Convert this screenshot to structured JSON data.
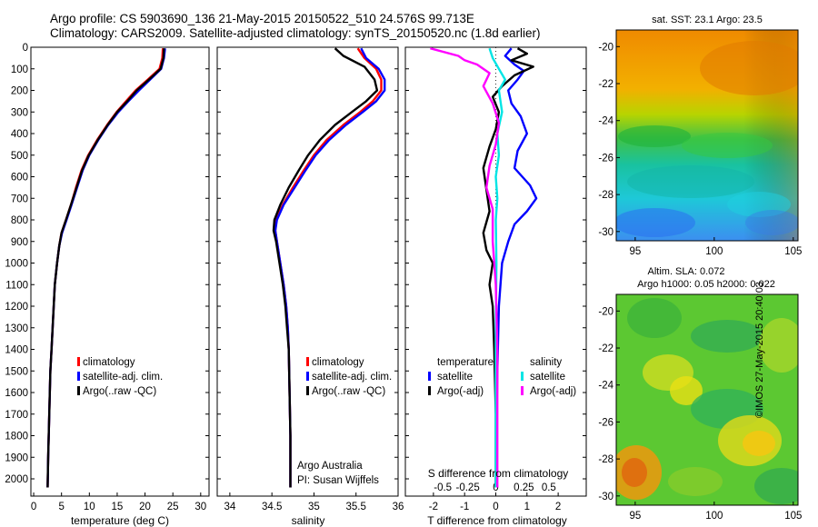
{
  "header": {
    "line1": "Argo profile: CS 5903690_136 21-May-2015 20150522_510 24.576S 99.713E",
    "line2": "Climatology: CARS2009. Satellite-adjusted climatology: synTS_20150520.nc (1.8d earlier)"
  },
  "stamp": "©IMOS 27-May-2015 20:40:03",
  "chart_data": [
    {
      "type": "line",
      "panel": "temperature",
      "xlabel": "temperature (deg C)",
      "ylabel": "",
      "xlim": [
        -0.5,
        31.5
      ],
      "ylim": [
        2080,
        0
      ],
      "xticks": [
        0,
        5,
        10,
        15,
        20,
        25,
        30
      ],
      "yticks": [
        0,
        100,
        200,
        300,
        400,
        500,
        600,
        700,
        800,
        900,
        1000,
        1100,
        1200,
        1300,
        1400,
        1500,
        1600,
        1700,
        1800,
        1900,
        2000
      ],
      "legend": [
        "climatology",
        "satellite-adj. clim.",
        "Argo(..raw -QC)"
      ],
      "series": [
        {
          "name": "climatology",
          "color": "#ff0000",
          "points": [
            [
              23.2,
              5
            ],
            [
              23.1,
              50
            ],
            [
              22.6,
              100
            ],
            [
              20.5,
              150
            ],
            [
              18.3,
              200
            ],
            [
              16.6,
              250
            ],
            [
              14.9,
              300
            ],
            [
              13.2,
              360
            ],
            [
              11.4,
              430
            ],
            [
              9.8,
              500
            ],
            [
              8.6,
              570
            ],
            [
              7.6,
              650
            ],
            [
              6.7,
              730
            ],
            [
              5.8,
              800
            ],
            [
              5.0,
              860
            ],
            [
              4.6,
              920
            ],
            [
              4.2,
              1000
            ],
            [
              3.8,
              1100
            ],
            [
              3.6,
              1200
            ],
            [
              3.4,
              1300
            ],
            [
              3.2,
              1400
            ],
            [
              3.0,
              1500
            ],
            [
              2.9,
              1600
            ],
            [
              2.8,
              1700
            ],
            [
              2.7,
              1800
            ],
            [
              2.6,
              1900
            ],
            [
              2.5,
              2040
            ]
          ]
        },
        {
          "name": "satellite-adj. clim.",
          "color": "#0000ff",
          "points": [
            [
              23.6,
              5
            ],
            [
              23.4,
              50
            ],
            [
              22.9,
              100
            ],
            [
              20.9,
              150
            ],
            [
              18.9,
              200
            ],
            [
              17.0,
              250
            ],
            [
              15.2,
              300
            ],
            [
              13.4,
              360
            ],
            [
              11.6,
              430
            ],
            [
              10.0,
              500
            ],
            [
              8.8,
              570
            ],
            [
              7.8,
              650
            ],
            [
              6.8,
              730
            ],
            [
              5.9,
              800
            ],
            [
              5.1,
              860
            ],
            [
              4.6,
              920
            ],
            [
              4.2,
              1000
            ],
            [
              3.8,
              1100
            ],
            [
              3.6,
              1200
            ],
            [
              3.4,
              1300
            ],
            [
              3.2,
              1400
            ],
            [
              3.0,
              1500
            ],
            [
              2.9,
              1600
            ],
            [
              2.8,
              1700
            ],
            [
              2.7,
              1800
            ],
            [
              2.6,
              1900
            ],
            [
              2.5,
              2040
            ]
          ]
        },
        {
          "name": "Argo(..raw -QC)",
          "color": "#000000",
          "points": [
            [
              23.4,
              5
            ],
            [
              23.3,
              50
            ],
            [
              22.8,
              100
            ],
            [
              20.7,
              150
            ],
            [
              18.5,
              200
            ],
            [
              16.8,
              250
            ],
            [
              15.0,
              300
            ],
            [
              13.3,
              360
            ],
            [
              11.5,
              430
            ],
            [
              9.9,
              500
            ],
            [
              8.7,
              570
            ],
            [
              7.7,
              650
            ],
            [
              6.7,
              730
            ],
            [
              5.8,
              800
            ],
            [
              5.0,
              860
            ],
            [
              4.6,
              920
            ],
            [
              4.2,
              1000
            ],
            [
              3.8,
              1100
            ],
            [
              3.6,
              1200
            ],
            [
              3.4,
              1300
            ],
            [
              3.2,
              1400
            ],
            [
              3.0,
              1500
            ],
            [
              2.9,
              1600
            ],
            [
              2.8,
              1700
            ],
            [
              2.7,
              1800
            ],
            [
              2.6,
              1900
            ],
            [
              2.5,
              2040
            ]
          ]
        }
      ]
    },
    {
      "type": "line",
      "panel": "salinity",
      "xlabel": "salinity",
      "ylabel": "",
      "xlim": [
        33.85,
        36.0
      ],
      "ylim": [
        2080,
        0
      ],
      "xticks": [
        34,
        34.5,
        35,
        35.5,
        36
      ],
      "legend": [
        "climatology",
        "satellite-adj. clim.",
        "Argo(..raw -QC)"
      ],
      "annotation": [
        "Argo Australia",
        "PI: Susan Wijffels"
      ],
      "series": [
        {
          "name": "climatology",
          "color": "#ff0000",
          "points": [
            [
              35.52,
              5
            ],
            [
              35.6,
              50
            ],
            [
              35.74,
              100
            ],
            [
              35.8,
              150
            ],
            [
              35.8,
              200
            ],
            [
              35.7,
              250
            ],
            [
              35.55,
              300
            ],
            [
              35.35,
              360
            ],
            [
              35.15,
              430
            ],
            [
              35.0,
              500
            ],
            [
              34.88,
              570
            ],
            [
              34.75,
              650
            ],
            [
              34.63,
              730
            ],
            [
              34.55,
              800
            ],
            [
              34.54,
              850
            ],
            [
              34.56,
              900
            ],
            [
              34.6,
              1000
            ],
            [
              34.64,
              1100
            ],
            [
              34.67,
              1200
            ],
            [
              34.69,
              1300
            ],
            [
              34.7,
              1400
            ],
            [
              34.71,
              1600
            ],
            [
              34.72,
              1800
            ],
            [
              34.72,
              2040
            ]
          ]
        },
        {
          "name": "satellite-adj. clim.",
          "color": "#0000ff",
          "points": [
            [
              35.56,
              5
            ],
            [
              35.62,
              50
            ],
            [
              35.77,
              100
            ],
            [
              35.84,
              150
            ],
            [
              35.84,
              200
            ],
            [
              35.74,
              250
            ],
            [
              35.58,
              300
            ],
            [
              35.38,
              360
            ],
            [
              35.18,
              430
            ],
            [
              35.02,
              500
            ],
            [
              34.9,
              570
            ],
            [
              34.77,
              650
            ],
            [
              34.64,
              730
            ],
            [
              34.56,
              800
            ],
            [
              34.54,
              850
            ],
            [
              34.56,
              900
            ],
            [
              34.6,
              1000
            ],
            [
              34.64,
              1100
            ],
            [
              34.67,
              1200
            ],
            [
              34.69,
              1300
            ],
            [
              34.7,
              1400
            ],
            [
              34.71,
              1600
            ],
            [
              34.72,
              1800
            ],
            [
              34.72,
              2040
            ]
          ]
        },
        {
          "name": "Argo(..raw -QC)",
          "color": "#000000",
          "points": [
            [
              35.25,
              5
            ],
            [
              35.35,
              40
            ],
            [
              35.6,
              90
            ],
            [
              35.72,
              150
            ],
            [
              35.75,
              200
            ],
            [
              35.62,
              250
            ],
            [
              35.45,
              300
            ],
            [
              35.25,
              360
            ],
            [
              35.07,
              430
            ],
            [
              34.93,
              500
            ],
            [
              34.82,
              570
            ],
            [
              34.7,
              650
            ],
            [
              34.6,
              730
            ],
            [
              34.53,
              800
            ],
            [
              34.52,
              850
            ],
            [
              34.55,
              900
            ],
            [
              34.59,
              1000
            ],
            [
              34.63,
              1100
            ],
            [
              34.66,
              1200
            ],
            [
              34.68,
              1300
            ],
            [
              34.7,
              1400
            ],
            [
              34.71,
              1600
            ],
            [
              34.72,
              1800
            ],
            [
              34.72,
              2040
            ]
          ]
        }
      ]
    },
    {
      "type": "line",
      "panel": "difference",
      "xlabel": "T difference from climatology",
      "xlabel_top": "S difference from climatology",
      "xlim": [
        -2.9,
        2.9
      ],
      "ylim": [
        2080,
        0
      ],
      "xticks_T": [
        -2,
        -1,
        0,
        1,
        2
      ],
      "xticks_S": [
        "-0.5",
        "-0.25",
        "0",
        "0.25",
        "0.5"
      ],
      "legend_groups": [
        {
          "title": "temperature",
          "items": [
            "satellite",
            "Argo(-adj)"
          ]
        },
        {
          "title": "salinity",
          "items": [
            "satellite",
            "Argo(-adj)"
          ]
        }
      ],
      "series": [
        {
          "name": "T satellite",
          "color": "#0000ff",
          "points": [
            [
              0.5,
              5
            ],
            [
              0.3,
              40
            ],
            [
              0.6,
              80
            ],
            [
              0.9,
              110
            ],
            [
              0.7,
              150
            ],
            [
              0.4,
              200
            ],
            [
              0.5,
              260
            ],
            [
              0.8,
              320
            ],
            [
              1.0,
              400
            ],
            [
              0.7,
              480
            ],
            [
              0.6,
              560
            ],
            [
              1.1,
              640
            ],
            [
              1.3,
              700
            ],
            [
              1.0,
              760
            ],
            [
              0.6,
              820
            ],
            [
              0.4,
              900
            ],
            [
              0.2,
              1000
            ],
            [
              0.1,
              1200
            ],
            [
              0.05,
              1500
            ],
            [
              0.02,
              1800
            ],
            [
              0.0,
              2040
            ]
          ]
        },
        {
          "name": "T Argo(-adj)",
          "color": "#000000",
          "points": [
            [
              0.7,
              5
            ],
            [
              1.0,
              30
            ],
            [
              0.5,
              60
            ],
            [
              1.2,
              90
            ],
            [
              0.6,
              130
            ],
            [
              0.2,
              180
            ],
            [
              -0.1,
              230
            ],
            [
              0.1,
              300
            ],
            [
              0.0,
              380
            ],
            [
              -0.2,
              460
            ],
            [
              -0.4,
              560
            ],
            [
              -0.3,
              660
            ],
            [
              -0.2,
              760
            ],
            [
              -0.4,
              860
            ],
            [
              -0.3,
              940
            ],
            [
              -0.1,
              1000
            ],
            [
              -0.2,
              1100
            ],
            [
              -0.1,
              1200
            ],
            [
              -0.05,
              1400
            ],
            [
              0.0,
              1700
            ],
            [
              0.0,
              2040
            ]
          ]
        },
        {
          "name": "S satellite",
          "color": "#00e5e5",
          "points": [
            [
              -0.2,
              5
            ],
            [
              -0.1,
              50
            ],
            [
              0.1,
              100
            ],
            [
              0.3,
              150
            ],
            [
              0.1,
              200
            ],
            [
              0.2,
              300
            ],
            [
              0.05,
              400
            ],
            [
              0.1,
              500
            ],
            [
              0.0,
              600
            ],
            [
              0.05,
              700
            ],
            [
              0.0,
              800
            ],
            [
              0.02,
              1000
            ],
            [
              0.0,
              1300
            ],
            [
              0.0,
              1600
            ],
            [
              0.0,
              2040
            ]
          ]
        },
        {
          "name": "S Argo(-adj)",
          "color": "#ff00ff",
          "points": [
            [
              -2.1,
              5
            ],
            [
              -1.2,
              40
            ],
            [
              -1.0,
              60
            ],
            [
              -0.6,
              80
            ],
            [
              -0.2,
              120
            ],
            [
              -0.4,
              180
            ],
            [
              -0.1,
              260
            ],
            [
              0.1,
              350
            ],
            [
              0.0,
              450
            ],
            [
              -0.2,
              550
            ],
            [
              -0.3,
              650
            ],
            [
              -0.1,
              750
            ],
            [
              -0.1,
              900
            ],
            [
              0.0,
              1100
            ],
            [
              0.05,
              1400
            ],
            [
              0.05,
              1700
            ],
            [
              0.05,
              2040
            ]
          ]
        }
      ]
    }
  ],
  "maps": {
    "sst": {
      "label": "sat. SST: 23.1  Argo: 23.5",
      "yticks": [
        "-20",
        "-22",
        "-24",
        "-26",
        "-28",
        "-30"
      ],
      "xticks": [
        "95",
        "100",
        "105"
      ]
    },
    "sla": {
      "label1": "Altim. SLA: 0.072",
      "label2": "Argo h1000: 0.05 h2000: 0.022",
      "yticks": [
        "-20",
        "-22",
        "-24",
        "-26",
        "-28",
        "-30"
      ],
      "xticks": [
        "95",
        "100",
        "105"
      ]
    }
  }
}
